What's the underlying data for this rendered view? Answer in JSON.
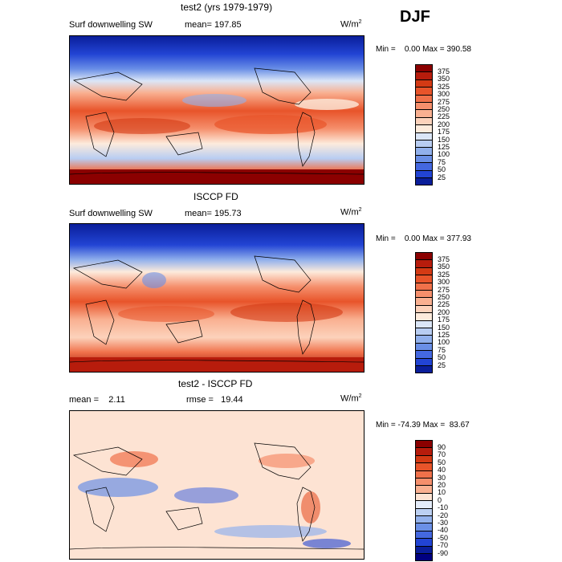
{
  "season": "DJF",
  "units_base": "W/m",
  "units_exp": "2",
  "panels": [
    {
      "title": "test2 (yrs 1979-1979)",
      "variable": "Surf downwelling SW",
      "stat_text": "mean= 197.85",
      "minmax_text": "Min =    0.00 Max = 390.58"
    },
    {
      "title": "ISCCP FD",
      "variable": "Surf downwelling SW",
      "stat_text": "mean= 195.73",
      "minmax_text": "Min =    0.00 Max = 377.93"
    },
    {
      "title": "test2 - ISCCP FD",
      "stat_text": "mean =    2.11",
      "rmse_text": "rmse =   19.44",
      "minmax_text": "Min = -74.39 Max =  83.67"
    }
  ],
  "chart_data": [
    {
      "type": "heatmap",
      "title": "test2 (yrs 1979-1979)",
      "variable": "Surf downwelling SW",
      "units": "W/m^2",
      "mean": 197.85,
      "min": 0.0,
      "max": 390.58,
      "colorbar": {
        "levels": [
          375,
          350,
          325,
          300,
          275,
          250,
          225,
          200,
          175,
          150,
          125,
          100,
          75,
          50,
          25
        ],
        "colors": [
          "#8b0000",
          "#b71c0c",
          "#d43a14",
          "#e8542a",
          "#f0714a",
          "#f58f6c",
          "#f9b091",
          "#fcd2bb",
          "#fdebdc",
          "#dbe6f7",
          "#b8cdf2",
          "#91b0ec",
          "#6a8fe6",
          "#4468e0",
          "#2244d4",
          "#0a1e9a"
        ]
      }
    },
    {
      "type": "heatmap",
      "title": "ISCCP FD",
      "variable": "Surf downwelling SW",
      "units": "W/m^2",
      "mean": 195.73,
      "min": 0.0,
      "max": 377.93,
      "colorbar": {
        "levels": [
          375,
          350,
          325,
          300,
          275,
          250,
          225,
          200,
          175,
          150,
          125,
          100,
          75,
          50,
          25
        ],
        "colors": [
          "#8b0000",
          "#b71c0c",
          "#d43a14",
          "#e8542a",
          "#f0714a",
          "#f58f6c",
          "#f9b091",
          "#fcd2bb",
          "#fdebdc",
          "#dbe6f7",
          "#b8cdf2",
          "#91b0ec",
          "#6a8fe6",
          "#4468e0",
          "#2244d4",
          "#0a1e9a"
        ]
      }
    },
    {
      "type": "heatmap",
      "title": "test2 - ISCCP FD",
      "units": "W/m^2",
      "mean": 2.11,
      "rmse": 19.44,
      "min": -74.39,
      "max": 83.67,
      "colorbar": {
        "levels": [
          90,
          70,
          50,
          40,
          30,
          20,
          10,
          0,
          -10,
          -20,
          -30,
          -40,
          -50,
          -70,
          -90
        ],
        "colors": [
          "#8b0000",
          "#b71c0c",
          "#d43a14",
          "#e8542a",
          "#f0714a",
          "#f58f6c",
          "#f9b091",
          "#fde3d3",
          "#e4ecf9",
          "#bcd0f2",
          "#94b2ec",
          "#6b90e6",
          "#4468e0",
          "#2244d4",
          "#0a1e9a",
          "#000080"
        ]
      }
    }
  ]
}
